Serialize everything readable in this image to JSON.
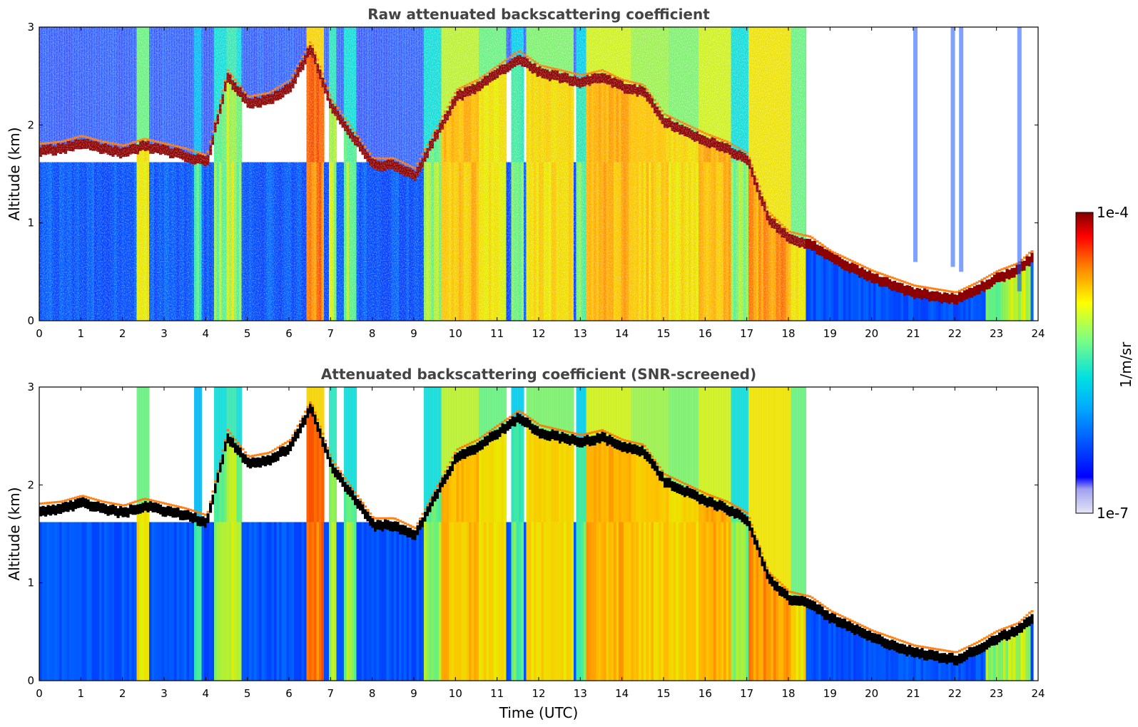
{
  "chart_data": [
    {
      "type": "heatmap",
      "title": "Raw attenuated backscattering coefficient",
      "xlabel": "",
      "ylabel": "Altitude (km)",
      "xlim": [
        0,
        24
      ],
      "ylim": [
        0,
        3
      ],
      "x_ticks": [
        "0",
        "1",
        "2",
        "3",
        "4",
        "5",
        "6",
        "7",
        "8",
        "9",
        "10",
        "11",
        "12",
        "13",
        "14",
        "15",
        "16",
        "17",
        "18",
        "19",
        "20",
        "21",
        "22",
        "23",
        "24"
      ],
      "y_ticks": [
        "0",
        "1",
        "2",
        "3"
      ],
      "screened": false,
      "cloud_base_km": [
        [
          0.0,
          1.7
        ],
        [
          0.5,
          1.72
        ],
        [
          1.0,
          1.78
        ],
        [
          1.5,
          1.72
        ],
        [
          2.0,
          1.68
        ],
        [
          2.5,
          1.75
        ],
        [
          3.0,
          1.7
        ],
        [
          3.5,
          1.65
        ],
        [
          4.0,
          1.58
        ],
        [
          4.5,
          2.45
        ],
        [
          5.0,
          2.18
        ],
        [
          5.5,
          2.22
        ],
        [
          6.0,
          2.35
        ],
        [
          6.5,
          2.75
        ],
        [
          7.0,
          2.15
        ],
        [
          7.5,
          1.85
        ],
        [
          8.0,
          1.55
        ],
        [
          8.5,
          1.55
        ],
        [
          9.0,
          1.45
        ],
        [
          10.0,
          2.25
        ],
        [
          10.5,
          2.35
        ],
        [
          11.0,
          2.5
        ],
        [
          11.5,
          2.65
        ],
        [
          12.0,
          2.5
        ],
        [
          12.5,
          2.45
        ],
        [
          13.0,
          2.4
        ],
        [
          13.5,
          2.45
        ],
        [
          14.0,
          2.35
        ],
        [
          14.5,
          2.3
        ],
        [
          15.0,
          2.0
        ],
        [
          15.5,
          1.9
        ],
        [
          16.0,
          1.8
        ],
        [
          16.5,
          1.72
        ],
        [
          17.0,
          1.6
        ],
        [
          17.5,
          1.0
        ],
        [
          18.0,
          0.8
        ],
        [
          18.5,
          0.75
        ],
        [
          19.0,
          0.6
        ],
        [
          20.0,
          0.4
        ],
        [
          21.0,
          0.25
        ],
        [
          22.0,
          0.18
        ],
        [
          22.5,
          0.28
        ],
        [
          23.0,
          0.4
        ],
        [
          23.5,
          0.48
        ],
        [
          23.8,
          0.6
        ]
      ]
    },
    {
      "type": "heatmap",
      "title": "Attenuated backscattering coefficient (SNR-screened)",
      "xlabel": "Time (UTC)",
      "ylabel": "Altitude (km)",
      "xlim": [
        0,
        24
      ],
      "ylim": [
        0,
        3
      ],
      "x_ticks": [
        "0",
        "1",
        "2",
        "3",
        "4",
        "5",
        "6",
        "7",
        "8",
        "9",
        "10",
        "11",
        "12",
        "13",
        "14",
        "15",
        "16",
        "17",
        "18",
        "19",
        "20",
        "21",
        "22",
        "23",
        "24"
      ],
      "y_ticks": [
        "0",
        "1",
        "2",
        "3"
      ],
      "screened": true
    }
  ],
  "colorbar": {
    "label": "1/m/sr",
    "max_label": "1e-4",
    "min_label": "1e-7",
    "scale": "log",
    "range": [
      1e-07,
      0.0001
    ],
    "colormap": "jet"
  },
  "colors": {
    "title": "#444444",
    "cloud_layer": "#8b0000",
    "screened_cloud_layer": "#000000"
  }
}
